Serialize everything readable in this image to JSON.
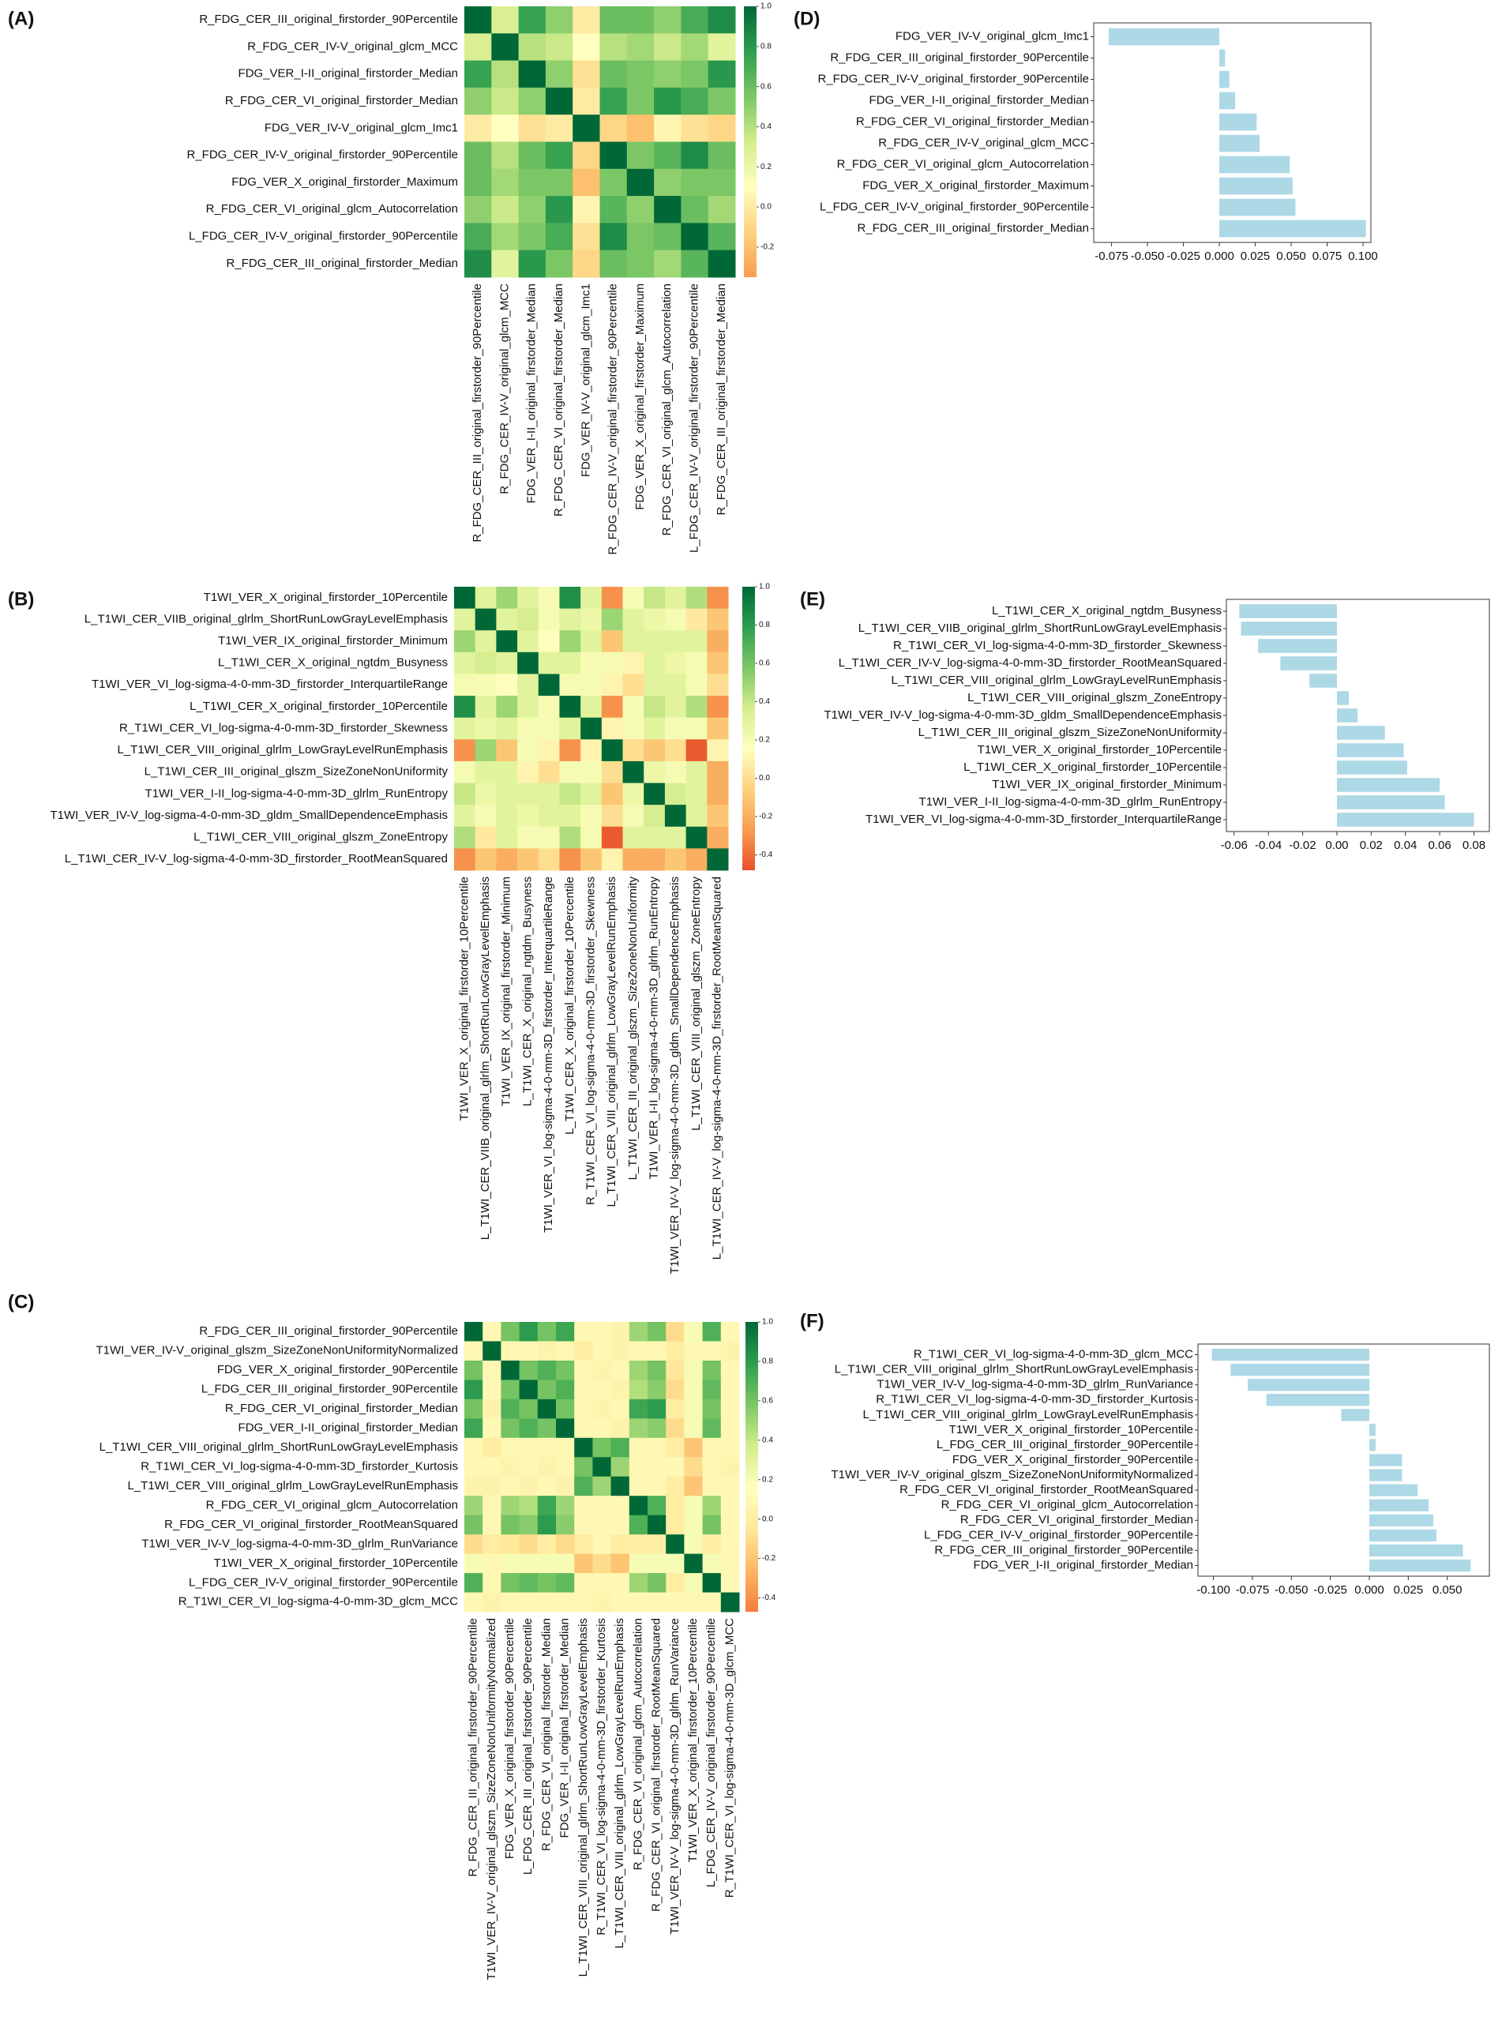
{
  "chart_data": [
    {
      "type": "heatmap",
      "panel_label": "(A)",
      "labels": [
        "R_FDG_CER_III_original_firstorder_90Percentile",
        "R_FDG_CER_IV-V_original_glcm_MCC",
        "FDG_VER_I-II_original_firstorder_Median",
        "R_FDG_CER_VI_original_firstorder_Median",
        "FDG_VER_IV-V_original_glcm_Imc1",
        "R_FDG_CER_IV-V_original_firstorder_90Percentile",
        "FDG_VER_X_original_firstorder_Maximum",
        "R_FDG_CER_VI_original_glcm_Autocorrelation",
        "L_FDG_CER_IV-V_original_firstorder_90Percentile",
        "R_FDG_CER_III_original_firstorder_Median"
      ],
      "matrix": [
        [
          1,
          0.3,
          0.75,
          0.5,
          0.0,
          0.6,
          0.6,
          0.5,
          0.7,
          0.85
        ],
        [
          0.3,
          1,
          0.4,
          0.35,
          0.1,
          0.4,
          0.45,
          0.35,
          0.45,
          0.25
        ],
        [
          0.75,
          0.4,
          1,
          0.5,
          -0.05,
          0.6,
          0.55,
          0.5,
          0.55,
          0.8
        ],
        [
          0.5,
          0.35,
          0.5,
          1,
          0.0,
          0.75,
          0.55,
          0.8,
          0.7,
          0.55
        ],
        [
          0.0,
          0.1,
          -0.05,
          0.0,
          1,
          -0.1,
          -0.2,
          0.05,
          -0.05,
          -0.1
        ],
        [
          0.6,
          0.4,
          0.6,
          0.75,
          -0.1,
          1,
          0.55,
          0.65,
          0.85,
          0.6
        ],
        [
          0.6,
          0.45,
          0.55,
          0.55,
          -0.2,
          0.55,
          1,
          0.5,
          0.55,
          0.55
        ],
        [
          0.5,
          0.35,
          0.5,
          0.8,
          0.05,
          0.65,
          0.5,
          1,
          0.6,
          0.45
        ],
        [
          0.7,
          0.45,
          0.55,
          0.7,
          -0.05,
          0.85,
          0.55,
          0.6,
          1,
          0.65
        ],
        [
          0.85,
          0.25,
          0.8,
          0.55,
          -0.1,
          0.6,
          0.55,
          0.45,
          0.65,
          1
        ]
      ],
      "colormap": [
        "#f99d50",
        "#fdd27f",
        "#ffffbf",
        "#d4ed8c",
        "#7cc765",
        "#2e9e4f",
        "#006837"
      ],
      "zlim": [
        -0.35,
        1
      ],
      "zticks": [
        {
          "value": 1,
          "label": "1.0"
        },
        0.8,
        0.6,
        0.4,
        0.2,
        {
          "value": 0,
          "label": "0.0"
        },
        -0.2
      ]
    },
    {
      "type": "heatmap",
      "panel_label": "(B)",
      "labels": [
        "T1WI_VER_X_original_firstorder_10Percentile",
        "L_T1WI_CER_VIIB_original_glrlm_ShortRunLowGrayLevelEmphasis",
        "T1WI_VER_IX_original_firstorder_Minimum",
        "L_T1WI_CER_X_original_ngtdm_Busyness",
        "T1WI_VER_VI_log-sigma-4-0-mm-3D_firstorder_InterquartileRange",
        "L_T1WI_CER_X_original_firstorder_10Percentile",
        "R_T1WI_CER_VI_log-sigma-4-0-mm-3D_firstorder_Skewness",
        "L_T1WI_CER_VIII_original_glrlm_LowGrayLevelRunEmphasis",
        "L_T1WI_CER_III_original_glszm_SizeZoneNonUniformity",
        "T1WI_VER_I-II_log-sigma-4-0-mm-3D_glrlm_RunEntropy",
        "T1WI_VER_IV-V_log-sigma-4-0-mm-3D_gldm_SmallDependenceEmphasis",
        "L_T1WI_CER_VIII_original_glszm_ZoneEntropy",
        "L_T1WI_CER_IV-V_log-sigma-4-0-mm-3D_firstorder_RootMeanSquared"
      ],
      "matrix": [
        [
          1,
          0.3,
          0.5,
          0.3,
          0.2,
          0.85,
          0.3,
          -0.3,
          0.2,
          0.4,
          0.3,
          0.45,
          -0.3
        ],
        [
          0.3,
          1,
          0.3,
          0.35,
          0.2,
          0.3,
          0.25,
          0.5,
          0.3,
          0.25,
          0.2,
          0.05,
          -0.1
        ],
        [
          0.5,
          0.3,
          1,
          0.3,
          0.15,
          0.5,
          0.3,
          -0.1,
          0.3,
          0.3,
          0.3,
          0.3,
          -0.2
        ],
        [
          0.3,
          0.35,
          0.3,
          1,
          0.3,
          0.3,
          0.2,
          0.2,
          0.1,
          0.3,
          0.25,
          0.2,
          -0.1
        ],
        [
          0.2,
          0.2,
          0.15,
          0.3,
          1,
          0.2,
          0.2,
          0.1,
          0.0,
          0.3,
          0.3,
          0.2,
          0.0
        ],
        [
          0.85,
          0.3,
          0.5,
          0.3,
          0.2,
          1,
          0.3,
          -0.3,
          0.2,
          0.4,
          0.3,
          0.45,
          -0.3
        ],
        [
          0.3,
          0.25,
          0.3,
          0.2,
          0.2,
          0.3,
          1,
          0.1,
          0.2,
          0.3,
          0.2,
          0.2,
          -0.1
        ],
        [
          -0.3,
          0.5,
          -0.1,
          0.2,
          0.1,
          -0.3,
          0.1,
          1,
          0.0,
          -0.1,
          0.0,
          -0.45,
          0.1
        ],
        [
          0.2,
          0.3,
          0.3,
          0.1,
          0.0,
          0.2,
          0.2,
          0.0,
          1,
          0.25,
          0.2,
          0.3,
          -0.2
        ],
        [
          0.4,
          0.25,
          0.3,
          0.3,
          0.3,
          0.4,
          0.3,
          -0.1,
          0.25,
          1,
          0.35,
          0.3,
          -0.2
        ],
        [
          0.3,
          0.2,
          0.3,
          0.25,
          0.3,
          0.3,
          0.2,
          0.0,
          0.2,
          0.35,
          1,
          0.3,
          -0.1
        ],
        [
          0.45,
          0.05,
          0.3,
          0.2,
          0.2,
          0.45,
          0.2,
          -0.45,
          0.3,
          0.3,
          0.3,
          1,
          -0.2
        ],
        [
          -0.3,
          -0.1,
          -0.2,
          -0.1,
          0.0,
          -0.3,
          -0.1,
          0.1,
          -0.2,
          -0.2,
          -0.1,
          -0.2,
          1
        ]
      ],
      "colormap": [
        "#e8502b",
        "#f99d50",
        "#fdd27f",
        "#ffffbf",
        "#d4ed8c",
        "#7cc765",
        "#2e9e4f",
        "#006837"
      ],
      "zlim": [
        -0.48,
        1
      ],
      "zticks": [
        {
          "value": 1,
          "label": "1.0"
        },
        0.8,
        0.6,
        0.4,
        0.2,
        {
          "value": 0,
          "label": "0.0"
        },
        -0.2,
        -0.4
      ]
    },
    {
      "type": "heatmap",
      "panel_label": "(C)",
      "labels": [
        "R_FDG_CER_III_original_firstorder_90Percentile",
        "T1WI_VER_IV-V_original_glszm_SizeZoneNonUniformityNormalized",
        "FDG_VER_X_original_firstorder_90Percentile",
        "L_FDG_CER_III_original_firstorder_90Percentile",
        "R_FDG_CER_VI_original_firstorder_Median",
        "FDG_VER_I-II_original_firstorder_Median",
        "L_T1WI_CER_VIII_original_glrlm_ShortRunLowGrayLevelEmphasis",
        "R_T1WI_CER_VI_log-sigma-4-0-mm-3D_firstorder_Kurtosis",
        "L_T1WI_CER_VIII_original_glrlm_LowGrayLevelRunEmphasis",
        "R_FDG_CER_VI_original_glcm_Autocorrelation",
        "R_FDG_CER_VI_original_firstorder_RootMeanSquared",
        "T1WI_VER_IV-V_log-sigma-4-0-mm-3D_glrlm_RunVariance",
        "T1WI_VER_X_original_firstorder_10Percentile",
        "L_FDG_CER_IV-V_original_firstorder_90Percentile",
        "R_T1WI_CER_VI_log-sigma-4-0-mm-3D_glcm_MCC"
      ],
      "matrix": [
        [
          1,
          0.1,
          0.6,
          0.8,
          0.6,
          0.75,
          0.1,
          0.1,
          0.05,
          0.5,
          0.6,
          -0.1,
          0.2,
          0.7,
          0.1
        ],
        [
          0.1,
          1,
          0.1,
          0.1,
          0.05,
          0.1,
          0.0,
          0.1,
          0.05,
          0.1,
          0.1,
          0.0,
          0.1,
          0.1,
          0.05
        ],
        [
          0.6,
          0.1,
          1,
          0.6,
          0.7,
          0.6,
          0.1,
          0.05,
          0.1,
          0.5,
          0.6,
          -0.05,
          0.2,
          0.6,
          0.1
        ],
        [
          0.8,
          0.1,
          0.6,
          1,
          0.6,
          0.7,
          0.1,
          0.1,
          0.05,
          0.45,
          0.55,
          -0.1,
          0.2,
          0.65,
          0.1
        ],
        [
          0.6,
          0.05,
          0.7,
          0.6,
          1,
          0.6,
          0.1,
          0.05,
          0.1,
          0.75,
          0.8,
          0.0,
          0.2,
          0.6,
          0.1
        ],
        [
          0.75,
          0.1,
          0.6,
          0.7,
          0.6,
          1,
          0.1,
          0.1,
          0.05,
          0.5,
          0.55,
          -0.1,
          0.2,
          0.65,
          0.1
        ],
        [
          0.1,
          0.0,
          0.1,
          0.1,
          0.1,
          0.1,
          1,
          0.6,
          0.7,
          0.1,
          0.1,
          0.0,
          -0.2,
          0.1,
          0.1
        ],
        [
          0.1,
          0.1,
          0.05,
          0.1,
          0.05,
          0.1,
          0.6,
          1,
          0.5,
          0.1,
          0.1,
          0.1,
          -0.1,
          0.1,
          0.05
        ],
        [
          0.05,
          0.05,
          0.1,
          0.05,
          0.1,
          0.05,
          0.7,
          0.5,
          1,
          0.1,
          0.1,
          0.0,
          -0.2,
          0.1,
          0.1
        ],
        [
          0.5,
          0.1,
          0.5,
          0.45,
          0.75,
          0.5,
          0.1,
          0.1,
          0.1,
          1,
          0.7,
          0.0,
          0.2,
          0.5,
          0.1
        ],
        [
          0.6,
          0.1,
          0.6,
          0.55,
          0.8,
          0.55,
          0.1,
          0.1,
          0.1,
          0.7,
          1,
          0.0,
          0.2,
          0.6,
          0.1
        ],
        [
          -0.1,
          0.0,
          -0.05,
          -0.1,
          0.0,
          -0.1,
          0.0,
          0.1,
          0.0,
          0.0,
          0.0,
          1,
          0.2,
          0.0,
          0.1
        ],
        [
          0.2,
          0.1,
          0.2,
          0.2,
          0.2,
          0.2,
          -0.2,
          -0.1,
          -0.2,
          0.2,
          0.2,
          0.2,
          1,
          0.2,
          0.1
        ],
        [
          0.7,
          0.1,
          0.6,
          0.65,
          0.6,
          0.65,
          0.1,
          0.1,
          0.1,
          0.5,
          0.6,
          0.0,
          0.2,
          1,
          0.1
        ],
        [
          0.1,
          0.05,
          0.1,
          0.1,
          0.1,
          0.1,
          0.1,
          0.05,
          0.1,
          0.1,
          0.1,
          0.1,
          0.1,
          0.1,
          1
        ]
      ],
      "colormap": [
        "#f57d3b",
        "#fdb765",
        "#fee89a",
        "#ffffbf",
        "#d4ed8c",
        "#7cc765",
        "#2e9e4f",
        "#006837"
      ],
      "zlim": [
        -0.47,
        1
      ],
      "zticks": [
        {
          "value": 1,
          "label": "1.0"
        },
        0.8,
        0.6,
        0.4,
        0.2,
        {
          "value": 0,
          "label": "0.0"
        },
        -0.2,
        -0.4
      ]
    },
    {
      "type": "bar",
      "orientation": "horizontal",
      "panel_label": "(D)",
      "color": "#add8e6",
      "categories": [
        "FDG_VER_IV-V_original_glcm_Imc1",
        "R_FDG_CER_III_original_firstorder_90Percentile",
        "R_FDG_CER_IV-V_original_firstorder_90Percentile",
        "FDG_VER_I-II_original_firstorder_Median",
        "R_FDG_CER_VI_original_firstorder_Median",
        "R_FDG_CER_IV-V_original_glcm_MCC",
        "R_FDG_CER_VI_original_glcm_Autocorrelation",
        "FDG_VER_X_original_firstorder_Maximum",
        "L_FDG_CER_IV-V_original_firstorder_90Percentile",
        "R_FDG_CER_III_original_firstorder_Median"
      ],
      "values": [
        -0.077,
        0.004,
        0.007,
        0.011,
        0.026,
        0.028,
        0.049,
        0.051,
        0.053,
        0.102
      ],
      "xlim": [
        -0.0874,
        0.1055
      ],
      "xticks": [
        {
          "value": -0.075,
          "label": "-0.075"
        },
        {
          "value": -0.05,
          "label": "-0.050"
        },
        {
          "value": -0.025,
          "label": "-0.025"
        },
        {
          "value": 0,
          "label": "0.000"
        },
        {
          "value": 0.025,
          "label": "0.025"
        },
        {
          "value": 0.05,
          "label": "0.050"
        },
        {
          "value": 0.075,
          "label": "0.075"
        },
        {
          "value": 0.1,
          "label": "0.100"
        }
      ]
    },
    {
      "type": "bar",
      "orientation": "horizontal",
      "panel_label": "(E)",
      "color": "#add8e6",
      "categories": [
        "L_T1WI_CER_X_original_ngtdm_Busyness",
        "L_T1WI_CER_VIIB_original_glrlm_ShortRunLowGrayLevelEmphasis",
        "R_T1WI_CER_VI_log-sigma-4-0-mm-3D_firstorder_Skewness",
        "L_T1WI_CER_IV-V_log-sigma-4-0-mm-3D_firstorder_RootMeanSquared",
        "L_T1WI_CER_VIII_original_glrlm_LowGrayLevelRunEmphasis",
        "L_T1WI_CER_VIII_original_glszm_ZoneEntropy",
        "T1WI_VER_IV-V_log-sigma-4-0-mm-3D_gldm_SmallDependenceEmphasis",
        "L_T1WI_CER_III_original_glszm_SizeZoneNonUniformity",
        "T1WI_VER_X_original_firstorder_10Percentile",
        "L_T1WI_CER_X_original_firstorder_10Percentile",
        "T1WI_VER_IX_original_firstorder_Minimum",
        "T1WI_VER_I-II_log-sigma-4-0-mm-3D_glrlm_RunEntropy",
        "T1WI_VER_VI_log-sigma-4-0-mm-3D_firstorder_InterquartileRange"
      ],
      "values": [
        -0.057,
        -0.056,
        -0.046,
        -0.033,
        -0.016,
        0.007,
        0.012,
        0.028,
        0.039,
        0.041,
        0.06,
        0.063,
        0.08
      ],
      "xlim": [
        -0.0645,
        0.089
      ],
      "xticks": [
        -0.06,
        -0.04,
        -0.02,
        {
          "value": 0,
          "label": "0.00"
        },
        0.02,
        0.04,
        0.06,
        0.08
      ]
    },
    {
      "type": "bar",
      "orientation": "horizontal",
      "panel_label": "(F)",
      "color": "#add8e6",
      "categories": [
        "R_T1WI_CER_VI_log-sigma-4-0-mm-3D_glcm_MCC",
        "L_T1WI_CER_VIII_original_glrlm_ShortRunLowGrayLevelEmphasis",
        "T1WI_VER_IV-V_log-sigma-4-0-mm-3D_glrlm_RunVariance",
        "R_T1WI_CER_VI_log-sigma-4-0-mm-3D_firstorder_Kurtosis",
        "L_T1WI_CER_VIII_original_glrlm_LowGrayLevelRunEmphasis",
        "T1WI_VER_X_original_firstorder_10Percentile",
        "L_FDG_CER_III_original_firstorder_90Percentile",
        "FDG_VER_X_original_firstorder_90Percentile",
        "T1WI_VER_IV-V_original_glszm_SizeZoneNonUniformityNormalized",
        "R_FDG_CER_VI_original_firstorder_RootMeanSquared",
        "R_FDG_CER_VI_original_glcm_Autocorrelation",
        "R_FDG_CER_VI_original_firstorder_Median",
        "L_FDG_CER_IV-V_original_firstorder_90Percentile",
        "R_FDG_CER_III_original_firstorder_90Percentile",
        "FDG_VER_I-II_original_firstorder_Median"
      ],
      "values": [
        -0.101,
        -0.089,
        -0.078,
        -0.066,
        -0.018,
        0.004,
        0.004,
        0.021,
        0.021,
        0.031,
        0.038,
        0.041,
        0.043,
        0.06,
        0.065
      ],
      "xlim": [
        -0.1099,
        0.077
      ],
      "xticks": [
        {
          "value": -0.1,
          "label": "-0.100"
        },
        {
          "value": -0.075,
          "label": "-0.075"
        },
        {
          "value": -0.05,
          "label": "-0.050"
        },
        {
          "value": -0.025,
          "label": "-0.025"
        },
        {
          "value": 0,
          "label": "0.000"
        },
        {
          "value": 0.025,
          "label": "0.025"
        },
        {
          "value": 0.05,
          "label": "0.050"
        }
      ]
    }
  ]
}
